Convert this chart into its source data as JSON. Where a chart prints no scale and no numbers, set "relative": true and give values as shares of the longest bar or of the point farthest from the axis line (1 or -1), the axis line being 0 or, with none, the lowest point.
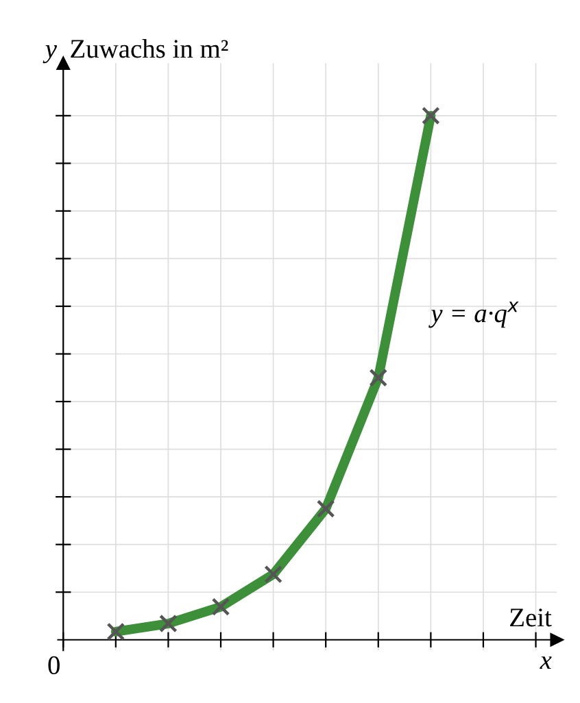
{
  "chart_data": {
    "type": "line",
    "relative": true,
    "xlabel": "Zeit",
    "ylabel": "Zuwachs in m²",
    "categories": [
      null,
      null,
      null,
      null,
      null,
      null,
      null
    ],
    "series": [
      {
        "color": "#3d8f3a",
        "values": [
          0.0156,
          0.031,
          0.063,
          0.125,
          0.25,
          0.5,
          1
        ]
      }
    ],
    "marker": "cross",
    "annotations": [
      "y",
      "x",
      "0",
      "y = a·q$^{x}$"
    ],
    "grid": true,
    "tick_labels": false
  }
}
